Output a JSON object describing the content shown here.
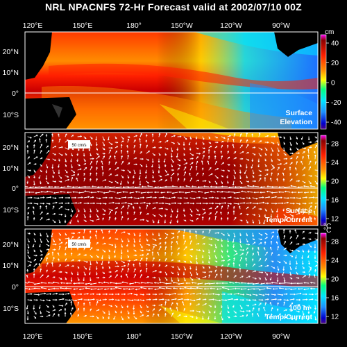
{
  "title": "NRL NPACNFS 72-Hr Forecast valid at 2002/07/10 00Z",
  "lat_labels": [
    "20°N",
    "10°N",
    "0°",
    "10°S"
  ],
  "lon_labels": [
    "120°E",
    "150°E",
    "180°",
    "150°W",
    "120°W",
    "90°W"
  ],
  "panels": [
    {
      "label_line1": "Surface",
      "label_line2": "Elevation",
      "unit": "cm",
      "colorbar_ticks": [
        "40",
        "20",
        "0",
        "-20",
        "-40"
      ],
      "vector_key": ""
    },
    {
      "label_line1": "Surface",
      "label_line2": "Temp/Current",
      "unit": "°C",
      "colorbar_ticks": [
        "28",
        "24",
        "20",
        "16",
        "12"
      ],
      "vector_key": "50 cm/s"
    },
    {
      "label_line1": "100 m",
      "label_line2": "Temp/Current",
      "unit": "°C",
      "colorbar_ticks": [
        "28",
        "24",
        "20",
        "16",
        "12"
      ],
      "vector_key": "50 cm/s"
    }
  ],
  "colors": {
    "background": "#000000",
    "land": "#000000",
    "ramp": [
      "#8b0000",
      "#ff1a00",
      "#ff8c00",
      "#ffff00",
      "#00ff7f",
      "#00e5ff",
      "#1e90ff",
      "#0000cd",
      "#4b0082"
    ]
  }
}
